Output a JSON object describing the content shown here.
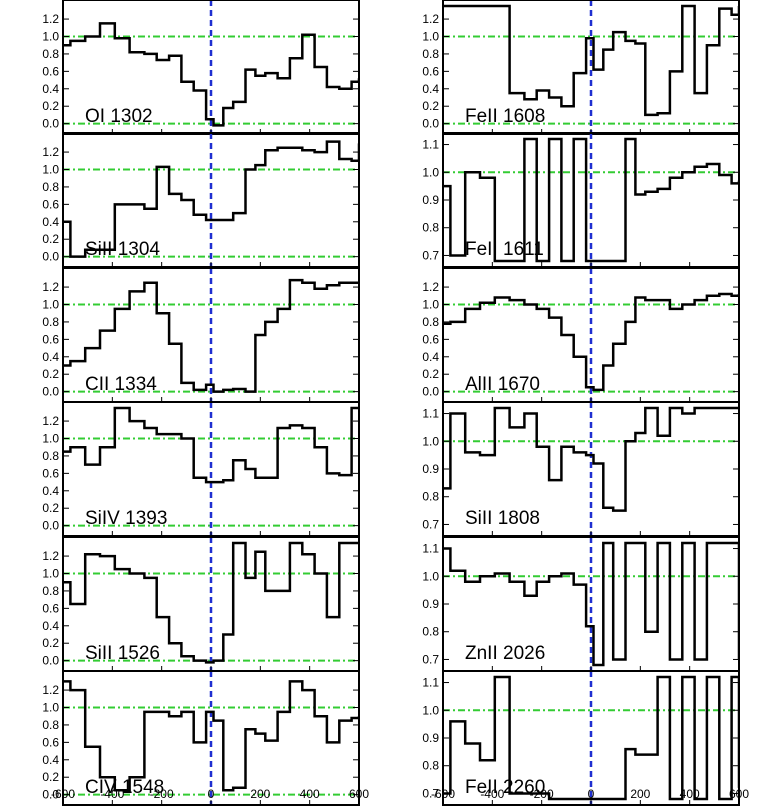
{
  "figure": {
    "type": "velocity-profile-grid",
    "colors": {
      "spectrum": "#000000",
      "zero_velocity": "#1f2fd0",
      "reference": "#33cc33",
      "frame": "#000000"
    },
    "x_range": [
      -600,
      600
    ],
    "x_ticks": [
      "-600",
      "-400",
      "-200",
      "0",
      "200",
      "400",
      "600"
    ]
  },
  "chart_data": [
    {
      "type": "line",
      "column": "left",
      "title": "OI 1302",
      "xlim": [
        -600,
        600
      ],
      "ylim": [
        -0.05,
        1.35
      ],
      "yticks": [
        "0.0",
        "0.2",
        "0.4",
        "0.6",
        "0.8",
        "1.0",
        "1.2"
      ],
      "x": [
        -600,
        -570,
        -510,
        -450,
        -390,
        -330,
        -270,
        -220,
        -170,
        -120,
        -70,
        -20,
        10,
        50,
        90,
        140,
        180,
        220,
        270,
        320,
        370,
        420,
        470,
        520,
        570,
        600
      ],
      "y": [
        0.9,
        0.95,
        1.0,
        1.15,
        0.98,
        0.82,
        0.8,
        0.73,
        0.78,
        0.48,
        0.38,
        0.05,
        -0.02,
        0.18,
        0.25,
        0.62,
        0.55,
        0.58,
        0.52,
        0.75,
        1.02,
        0.65,
        0.42,
        0.4,
        0.48,
        0.52
      ]
    },
    {
      "type": "line",
      "column": "left",
      "title": "SiII 1304",
      "xlim": [
        -600,
        600
      ],
      "ylim": [
        -0.05,
        1.35
      ],
      "yticks": [
        "0.0",
        "0.2",
        "0.4",
        "0.6",
        "0.8",
        "1.0",
        "1.2"
      ],
      "x": [
        -600,
        -570,
        -510,
        -450,
        -390,
        -330,
        -270,
        -220,
        -170,
        -120,
        -70,
        -20,
        10,
        50,
        90,
        140,
        180,
        220,
        270,
        320,
        370,
        420,
        470,
        520,
        570,
        600
      ],
      "y": [
        0.4,
        0.0,
        0.08,
        0.08,
        0.6,
        0.6,
        0.55,
        1.03,
        0.72,
        0.65,
        0.48,
        0.42,
        0.42,
        0.42,
        0.5,
        1.0,
        1.05,
        1.22,
        1.25,
        1.25,
        1.22,
        1.2,
        1.32,
        1.12,
        1.1,
        1.3
      ]
    },
    {
      "type": "line",
      "column": "left",
      "title": "CII 1334",
      "xlim": [
        -600,
        600
      ],
      "ylim": [
        -0.05,
        1.35
      ],
      "yticks": [
        "0.0",
        "0.2",
        "0.4",
        "0.6",
        "0.8",
        "1.0",
        "1.2"
      ],
      "x": [
        -600,
        -570,
        -510,
        -450,
        -390,
        -330,
        -270,
        -220,
        -170,
        -120,
        -70,
        -20,
        10,
        50,
        90,
        140,
        180,
        220,
        270,
        320,
        370,
        420,
        470,
        520,
        570,
        600
      ],
      "y": [
        0.3,
        0.35,
        0.5,
        0.7,
        0.95,
        1.15,
        1.25,
        0.9,
        0.55,
        0.1,
        0.02,
        0.08,
        0.0,
        0.02,
        0.03,
        0.0,
        0.65,
        0.8,
        0.95,
        1.28,
        1.25,
        1.18,
        1.22,
        1.25,
        1.25,
        1.25
      ]
    },
    {
      "type": "line",
      "column": "left",
      "title": "SiIV 1393",
      "xlim": [
        -600,
        600
      ],
      "ylim": [
        -0.05,
        1.35
      ],
      "yticks": [
        "0.0",
        "0.2",
        "0.4",
        "0.6",
        "0.8",
        "1.0",
        "1.2"
      ],
      "x": [
        -600,
        -570,
        -510,
        -450,
        -390,
        -330,
        -270,
        -220,
        -170,
        -120,
        -70,
        -20,
        10,
        50,
        90,
        140,
        180,
        220,
        270,
        320,
        370,
        420,
        470,
        520,
        570,
        600
      ],
      "y": [
        0.85,
        0.9,
        0.7,
        0.9,
        1.35,
        1.2,
        1.12,
        1.05,
        1.05,
        1.0,
        0.55,
        0.5,
        0.5,
        0.52,
        0.75,
        0.65,
        0.55,
        0.55,
        1.12,
        1.15,
        1.12,
        0.9,
        0.6,
        0.58,
        1.35,
        1.35
      ]
    },
    {
      "type": "line",
      "column": "left",
      "title": "SiII 1526",
      "xlim": [
        -600,
        600
      ],
      "ylim": [
        -0.05,
        1.35
      ],
      "yticks": [
        "0.0",
        "0.2",
        "0.4",
        "0.6",
        "0.8",
        "1.0",
        "1.2"
      ],
      "x": [
        -600,
        -570,
        -510,
        -450,
        -390,
        -330,
        -270,
        -220,
        -170,
        -120,
        -70,
        -20,
        10,
        50,
        90,
        140,
        180,
        220,
        270,
        320,
        370,
        420,
        470,
        520,
        570,
        600
      ],
      "y": [
        0.9,
        0.65,
        1.22,
        1.2,
        1.05,
        1.0,
        0.95,
        0.5,
        0.2,
        0.05,
        0.0,
        -0.02,
        0.0,
        0.3,
        1.35,
        0.95,
        1.25,
        0.8,
        0.8,
        1.35,
        1.22,
        1.0,
        0.5,
        1.35,
        1.35,
        1.35
      ]
    },
    {
      "type": "line",
      "column": "left",
      "title": "CIV 1548",
      "xlim": [
        -600,
        600
      ],
      "ylim": [
        -0.05,
        1.35
      ],
      "yticks": [
        "0.0",
        "0.2",
        "0.4",
        "0.6",
        "0.8",
        "1.0",
        "1.2"
      ],
      "x": [
        -600,
        -570,
        -510,
        -450,
        -390,
        -330,
        -270,
        -220,
        -170,
        -120,
        -70,
        -20,
        10,
        50,
        90,
        140,
        180,
        220,
        270,
        320,
        370,
        420,
        470,
        520,
        570,
        600
      ],
      "y": [
        1.3,
        1.2,
        0.55,
        0.2,
        0.05,
        0.2,
        0.95,
        0.95,
        0.9,
        0.95,
        0.6,
        0.95,
        0.85,
        0.05,
        0.08,
        0.75,
        0.7,
        0.62,
        0.95,
        1.3,
        1.2,
        0.9,
        0.6,
        0.85,
        0.88,
        0.9
      ]
    },
    {
      "type": "line",
      "column": "right",
      "title": "FeII 1608",
      "xlim": [
        -600,
        600
      ],
      "ylim": [
        -0.05,
        1.35
      ],
      "yticks": [
        "0.0",
        "0.2",
        "0.4",
        "0.6",
        "0.8",
        "1.0",
        "1.2"
      ],
      "x": [
        -600,
        -570,
        -510,
        -450,
        -390,
        -330,
        -270,
        -220,
        -170,
        -120,
        -70,
        -20,
        10,
        50,
        90,
        140,
        180,
        220,
        270,
        320,
        370,
        420,
        470,
        520,
        570,
        600
      ],
      "y": [
        1.35,
        1.35,
        1.35,
        1.35,
        1.35,
        0.35,
        0.28,
        0.38,
        0.3,
        0.2,
        0.58,
        0.98,
        0.62,
        0.85,
        1.05,
        0.95,
        0.92,
        0.1,
        0.12,
        0.6,
        1.35,
        0.35,
        0.9,
        1.32,
        1.25,
        1.35
      ]
    },
    {
      "type": "line",
      "column": "right",
      "title": "FeII 1611",
      "xlim": [
        -600,
        600
      ],
      "ylim": [
        0.68,
        1.12
      ],
      "yticks": [
        "0.7",
        "0.8",
        "0.9",
        "1.0",
        "1.1"
      ],
      "x": [
        -600,
        -570,
        -510,
        -450,
        -390,
        -330,
        -270,
        -220,
        -170,
        -120,
        -70,
        -20,
        10,
        50,
        90,
        140,
        180,
        220,
        270,
        320,
        370,
        420,
        470,
        520,
        570,
        600
      ],
      "y": [
        0.95,
        0.7,
        1.0,
        0.98,
        0.68,
        0.68,
        1.12,
        0.68,
        1.12,
        0.68,
        1.12,
        0.68,
        0.68,
        0.68,
        0.68,
        1.12,
        0.92,
        0.93,
        0.94,
        0.98,
        1.0,
        1.02,
        1.03,
        0.99,
        0.96,
        0.97
      ]
    },
    {
      "type": "line",
      "column": "right",
      "title": "AlII 1670",
      "xlim": [
        -600,
        600
      ],
      "ylim": [
        -0.05,
        1.35
      ],
      "yticks": [
        "0.0",
        "0.2",
        "0.4",
        "0.6",
        "0.8",
        "1.0",
        "1.2"
      ],
      "x": [
        -600,
        -570,
        -510,
        -450,
        -390,
        -330,
        -270,
        -220,
        -170,
        -120,
        -70,
        -20,
        10,
        50,
        90,
        140,
        180,
        220,
        270,
        320,
        370,
        420,
        470,
        520,
        570,
        600
      ],
      "y": [
        0.78,
        0.8,
        0.95,
        1.02,
        1.08,
        1.05,
        1.0,
        0.95,
        0.85,
        0.65,
        0.4,
        0.05,
        0.02,
        0.3,
        0.55,
        0.8,
        1.08,
        1.05,
        1.05,
        0.95,
        1.0,
        1.05,
        1.1,
        1.12,
        1.1,
        1.12
      ]
    },
    {
      "type": "line",
      "column": "right",
      "title": "SiII 1808",
      "xlim": [
        -600,
        600
      ],
      "ylim": [
        0.68,
        1.12
      ],
      "yticks": [
        "0.7",
        "0.8",
        "0.9",
        "1.0",
        "1.1"
      ],
      "x": [
        -600,
        -570,
        -510,
        -450,
        -390,
        -330,
        -270,
        -220,
        -170,
        -120,
        -70,
        -20,
        10,
        50,
        90,
        140,
        180,
        220,
        270,
        320,
        370,
        420,
        470,
        520,
        570,
        600
      ],
      "y": [
        0.83,
        1.1,
        0.96,
        0.95,
        1.12,
        1.05,
        1.1,
        0.98,
        0.86,
        0.98,
        0.96,
        0.95,
        0.92,
        0.76,
        0.75,
        1.0,
        1.03,
        1.12,
        1.02,
        1.12,
        1.1,
        1.12,
        1.12,
        1.12,
        1.12,
        1.12
      ]
    },
    {
      "type": "line",
      "column": "right",
      "title": "ZnII 2026",
      "xlim": [
        -600,
        600
      ],
      "ylim": [
        0.68,
        1.12
      ],
      "yticks": [
        "0.7",
        "0.8",
        "0.9",
        "1.0",
        "1.1"
      ],
      "x": [
        -600,
        -570,
        -510,
        -450,
        -390,
        -330,
        -270,
        -220,
        -170,
        -120,
        -70,
        -20,
        10,
        50,
        90,
        140,
        180,
        220,
        270,
        320,
        370,
        420,
        470,
        520,
        570,
        600
      ],
      "y": [
        1.1,
        1.02,
        0.98,
        1.0,
        1.01,
        0.98,
        0.93,
        0.98,
        1.0,
        1.01,
        0.97,
        0.82,
        0.68,
        1.12,
        0.7,
        1.12,
        1.12,
        0.8,
        1.12,
        0.7,
        1.12,
        0.7,
        1.12,
        1.12,
        1.12,
        0.7
      ]
    },
    {
      "type": "line",
      "column": "right",
      "title": "FeII 2260",
      "xlim": [
        -600,
        600
      ],
      "ylim": [
        0.68,
        1.12
      ],
      "yticks": [
        "0.7",
        "0.8",
        "0.9",
        "1.0",
        "1.1"
      ],
      "x": [
        -600,
        -570,
        -510,
        -450,
        -390,
        -330,
        -270,
        -220,
        -170,
        -120,
        -70,
        -20,
        10,
        50,
        90,
        140,
        180,
        220,
        270,
        320,
        370,
        420,
        470,
        520,
        570,
        600
      ],
      "y": [
        0.7,
        0.96,
        0.88,
        0.82,
        1.12,
        0.7,
        0.7,
        0.7,
        0.68,
        0.68,
        0.68,
        0.68,
        0.68,
        0.68,
        0.68,
        0.86,
        0.84,
        0.84,
        1.12,
        0.68,
        1.12,
        0.68,
        1.12,
        0.68,
        1.12,
        0.72
      ]
    }
  ]
}
